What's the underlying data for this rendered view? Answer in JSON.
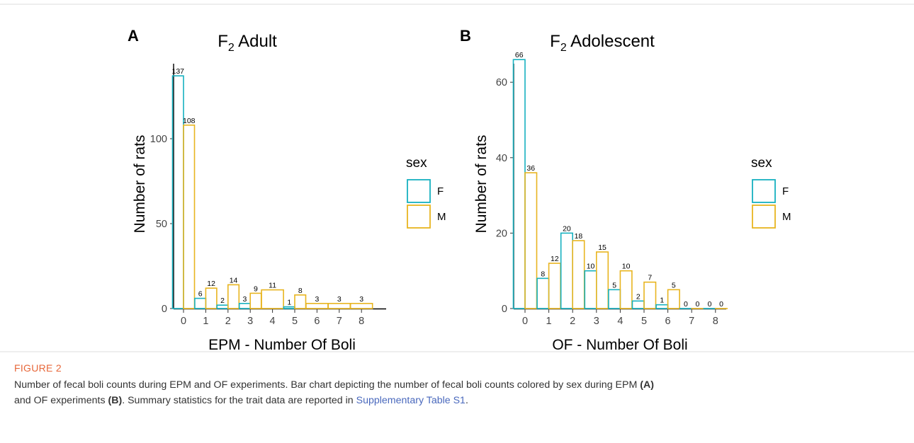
{
  "chart_data": [
    {
      "type": "bar",
      "panel_letter": "A",
      "title": "F",
      "title_subscript": "2",
      "title_suffix": " Adult",
      "xlabel": "EPM - Number Of Boli",
      "ylabel": "Number of rats",
      "categories": [
        "0",
        "1",
        "2",
        "3",
        "4",
        "5",
        "6",
        "7",
        "8"
      ],
      "ylim": [
        0,
        140
      ],
      "yticks": [
        0,
        50,
        100
      ],
      "series": [
        {
          "name": "F",
          "color": "#17b1c0",
          "values": [
            137,
            6,
            2,
            3,
            null,
            1,
            null,
            null,
            null
          ]
        },
        {
          "name": "M",
          "color": "#e8b520",
          "values": [
            108,
            12,
            14,
            9,
            11,
            8,
            3,
            3,
            3
          ]
        }
      ],
      "legend": {
        "title": "sex",
        "placement": "right"
      }
    },
    {
      "type": "bar",
      "panel_letter": "B",
      "title": "F",
      "title_subscript": "2",
      "title_suffix": " Adolescent",
      "xlabel": "OF - Number Of Boli",
      "ylabel": "Number of rats",
      "categories": [
        "0",
        "1",
        "2",
        "3",
        "4",
        "5",
        "6",
        "7",
        "8"
      ],
      "ylim": [
        0,
        68
      ],
      "yticks": [
        0,
        20,
        40,
        60
      ],
      "series": [
        {
          "name": "F",
          "color": "#17b1c0",
          "values": [
            66,
            8,
            20,
            10,
            5,
            2,
            1,
            0,
            0
          ]
        },
        {
          "name": "M",
          "color": "#e8b520",
          "values": [
            36,
            12,
            18,
            15,
            10,
            7,
            5,
            0,
            0
          ]
        }
      ],
      "legend": {
        "title": "sex",
        "placement": "right"
      }
    }
  ],
  "caption": {
    "figure_label": "FIGURE 2",
    "line1": "Number of fecal boli counts during EPM and OF experiments. Bar chart depicting the number of fecal boli counts colored by sex during EPM",
    "ref_a": "(A)",
    "line2_pre": "and OF experiments",
    "ref_b": "(B)",
    "line2_mid": ". Summary statistics for the trait data are reported in",
    "link_text": "Supplementary Table S1",
    "line2_end": "."
  }
}
